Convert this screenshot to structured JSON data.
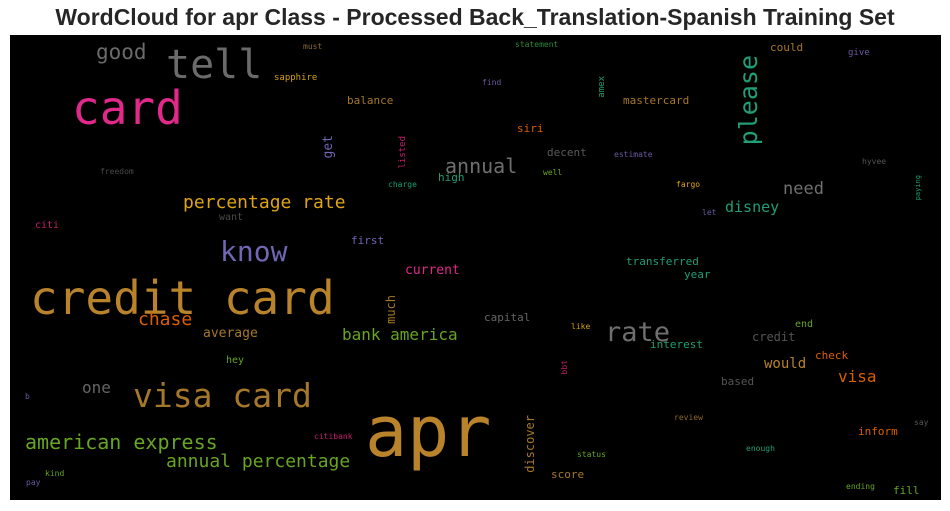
{
  "title": "WordCloud for apr Class - Processed Back_Translation-Spanish Training Set",
  "words": [
    {
      "text": "apr",
      "color": "#b8832b"
    },
    {
      "text": "credit card",
      "color": "#b8832b"
    },
    {
      "text": "card",
      "color": "#e0298a"
    },
    {
      "text": "visa card",
      "color": "#a5772a"
    },
    {
      "text": "tell",
      "color": "#6b6b6b"
    },
    {
      "text": "rate",
      "color": "#6f6f6f"
    },
    {
      "text": "know",
      "color": "#7066b3"
    },
    {
      "text": "please",
      "color": "#1f9e77"
    },
    {
      "text": "american express",
      "color": "#67a523"
    },
    {
      "text": "annual percentage",
      "color": "#67a523"
    },
    {
      "text": "good",
      "color": "#6b6b6b"
    },
    {
      "text": "percentage rate",
      "color": "#e0a412"
    },
    {
      "text": "chase",
      "color": "#d95f02"
    },
    {
      "text": "bank america",
      "color": "#67a523"
    },
    {
      "text": "annual",
      "color": "#6f6f6f"
    },
    {
      "text": "visa",
      "color": "#d95f02"
    },
    {
      "text": "need",
      "color": "#6f6f6f"
    },
    {
      "text": "disney",
      "color": "#1f9e77"
    },
    {
      "text": "one",
      "color": "#666666"
    },
    {
      "text": "would",
      "color": "#b8832b"
    },
    {
      "text": "current",
      "color": "#e0298a"
    },
    {
      "text": "average",
      "color": "#a5772a"
    },
    {
      "text": "capital",
      "color": "#666666"
    },
    {
      "text": "credit",
      "color": "#555555"
    },
    {
      "text": "interest",
      "color": "#1f9e77"
    },
    {
      "text": "transferred",
      "color": "#1f9e77"
    },
    {
      "text": "year",
      "color": "#1f9e77"
    },
    {
      "text": "mastercard",
      "color": "#a5772a"
    },
    {
      "text": "balance",
      "color": "#a5772a"
    },
    {
      "text": "siri",
      "color": "#d95f02"
    },
    {
      "text": "decent",
      "color": "#5a5a5a"
    },
    {
      "text": "could",
      "color": "#a5772a"
    },
    {
      "text": "get",
      "color": "#7066b3"
    },
    {
      "text": "much",
      "color": "#a5772a"
    },
    {
      "text": "discover",
      "color": "#a5772a"
    },
    {
      "text": "score",
      "color": "#a5772a"
    },
    {
      "text": "inform",
      "color": "#d95f02"
    },
    {
      "text": "check",
      "color": "#d95f02"
    },
    {
      "text": "based",
      "color": "#555555"
    },
    {
      "text": "hey",
      "color": "#67a523"
    },
    {
      "text": "end",
      "color": "#67a523"
    },
    {
      "text": "fill",
      "color": "#67a523"
    },
    {
      "text": "first",
      "color": "#7066b3"
    },
    {
      "text": "high",
      "color": "#1f9e77"
    },
    {
      "text": "want",
      "color": "#4a4a4a"
    },
    {
      "text": "citi",
      "color": "#c41e6a"
    },
    {
      "text": "amex",
      "color": "#1f9e77"
    },
    {
      "text": "listed",
      "color": "#c41e6a"
    },
    {
      "text": "sapphire",
      "color": "#d4a017"
    },
    {
      "text": "must",
      "color": "#8a6a2a"
    },
    {
      "text": "statement",
      "color": "#2a8a3a"
    },
    {
      "text": "give",
      "color": "#6a5aa0"
    },
    {
      "text": "find",
      "color": "#6a5aa0"
    },
    {
      "text": "estimate",
      "color": "#6a5aa0"
    },
    {
      "text": "freedom",
      "color": "#4a4a4a"
    },
    {
      "text": "charge",
      "color": "#1f9e77"
    },
    {
      "text": "well",
      "color": "#67a523"
    },
    {
      "text": "fargo",
      "color": "#e0a412"
    },
    {
      "text": "let",
      "color": "#6a5aa0"
    },
    {
      "text": "hyvee",
      "color": "#555555"
    },
    {
      "text": "paying",
      "color": "#1f9e77"
    },
    {
      "text": "like",
      "color": "#d4a017"
    },
    {
      "text": "bbt",
      "color": "#c41e6a"
    },
    {
      "text": "review",
      "color": "#8a6a2a"
    },
    {
      "text": "say",
      "color": "#555555"
    },
    {
      "text": "citibank",
      "color": "#c41e6a"
    },
    {
      "text": "enough",
      "color": "#1f9e77"
    },
    {
      "text": "status",
      "color": "#67a523"
    },
    {
      "text": "ending",
      "color": "#67a523"
    },
    {
      "text": "kind",
      "color": "#67a523"
    },
    {
      "text": "pay",
      "color": "#6a5aa0"
    },
    {
      "text": "b",
      "color": "#6a5aa0"
    }
  ]
}
